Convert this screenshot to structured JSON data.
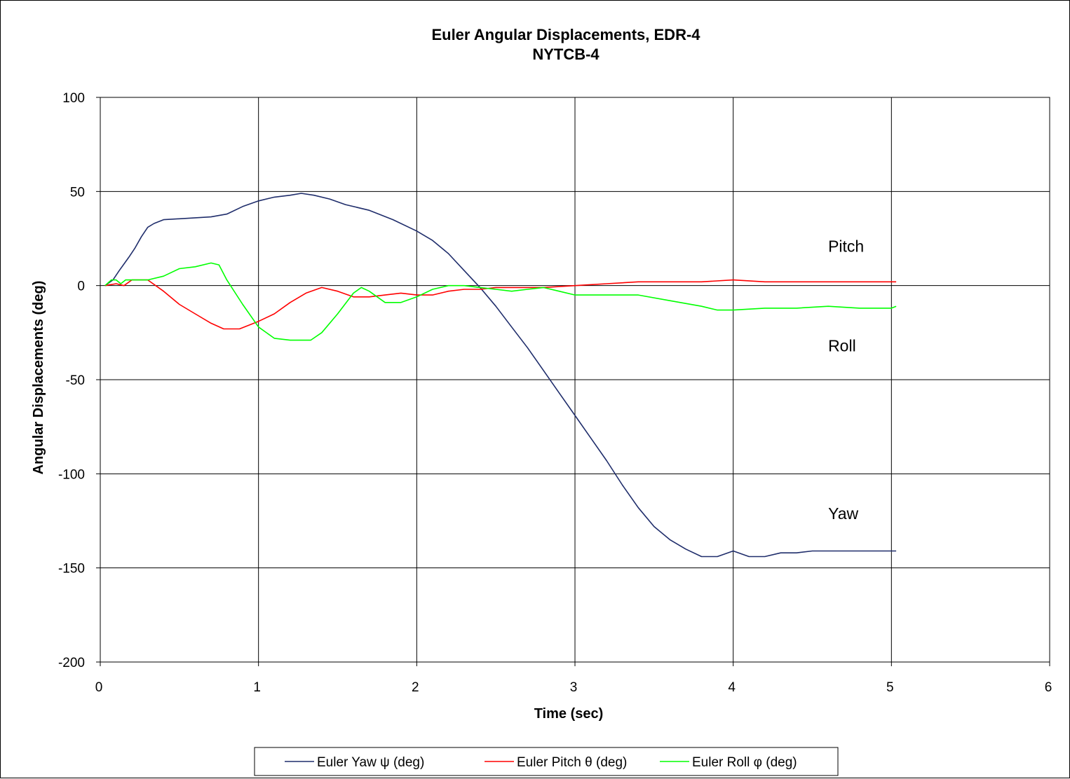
{
  "chart_data": {
    "type": "line",
    "title": "Euler Angular Displacements, EDR-4",
    "subtitle": "NYTCB-4",
    "xlabel": "Time (sec)",
    "ylabel": "Angular Displacements (deg)",
    "xlim": [
      0,
      6
    ],
    "ylim": [
      -200,
      100
    ],
    "xticks": [
      0,
      1,
      2,
      3,
      4,
      5,
      6
    ],
    "yticks": [
      100,
      50,
      0,
      -50,
      -100,
      -150,
      -200
    ],
    "grid": true,
    "legend_position": "bottom",
    "annotations": [
      {
        "text": "Pitch",
        "x": 4.6,
        "y": 18
      },
      {
        "text": "Roll",
        "x": 4.6,
        "y": -35
      },
      {
        "text": "Yaw",
        "x": 4.6,
        "y": -124
      }
    ],
    "series": [
      {
        "name": "Euler Yaw ψ (deg)",
        "color": "#1f2d6b",
        "points": [
          [
            0.03,
            0
          ],
          [
            0.08,
            3
          ],
          [
            0.12,
            8
          ],
          [
            0.18,
            15
          ],
          [
            0.22,
            20
          ],
          [
            0.26,
            26
          ],
          [
            0.3,
            31
          ],
          [
            0.34,
            33
          ],
          [
            0.4,
            35
          ],
          [
            0.5,
            35.5
          ],
          [
            0.6,
            36
          ],
          [
            0.7,
            36.5
          ],
          [
            0.8,
            38
          ],
          [
            0.9,
            42
          ],
          [
            1.0,
            45
          ],
          [
            1.1,
            47
          ],
          [
            1.2,
            48
          ],
          [
            1.27,
            49
          ],
          [
            1.35,
            48
          ],
          [
            1.45,
            46
          ],
          [
            1.55,
            43
          ],
          [
            1.7,
            40
          ],
          [
            1.85,
            35
          ],
          [
            2.0,
            29
          ],
          [
            2.1,
            24
          ],
          [
            2.2,
            17
          ],
          [
            2.3,
            8
          ],
          [
            2.4,
            -1
          ],
          [
            2.5,
            -11
          ],
          [
            2.6,
            -22
          ],
          [
            2.7,
            -33
          ],
          [
            2.8,
            -45
          ],
          [
            2.9,
            -57
          ],
          [
            3.0,
            -69
          ],
          [
            3.1,
            -81
          ],
          [
            3.2,
            -93
          ],
          [
            3.3,
            -106
          ],
          [
            3.4,
            -118
          ],
          [
            3.5,
            -128
          ],
          [
            3.6,
            -135
          ],
          [
            3.7,
            -140
          ],
          [
            3.8,
            -144
          ],
          [
            3.9,
            -144
          ],
          [
            4.0,
            -141
          ],
          [
            4.1,
            -144
          ],
          [
            4.2,
            -144
          ],
          [
            4.3,
            -142
          ],
          [
            4.4,
            -142
          ],
          [
            4.5,
            -141
          ],
          [
            4.7,
            -141
          ],
          [
            5.0,
            -141
          ],
          [
            5.03,
            -141
          ]
        ]
      },
      {
        "name": "Euler Pitch θ (deg)",
        "color": "#ff0000",
        "points": [
          [
            0.03,
            0
          ],
          [
            0.1,
            1
          ],
          [
            0.15,
            0
          ],
          [
            0.2,
            3
          ],
          [
            0.3,
            3
          ],
          [
            0.4,
            -3
          ],
          [
            0.5,
            -10
          ],
          [
            0.6,
            -15
          ],
          [
            0.7,
            -20
          ],
          [
            0.78,
            -23
          ],
          [
            0.88,
            -23
          ],
          [
            1.0,
            -19
          ],
          [
            1.1,
            -15
          ],
          [
            1.2,
            -9
          ],
          [
            1.3,
            -4
          ],
          [
            1.4,
            -1
          ],
          [
            1.5,
            -3
          ],
          [
            1.6,
            -6
          ],
          [
            1.7,
            -6
          ],
          [
            1.8,
            -5
          ],
          [
            1.9,
            -4
          ],
          [
            2.0,
            -5
          ],
          [
            2.1,
            -5
          ],
          [
            2.2,
            -3
          ],
          [
            2.3,
            -2
          ],
          [
            2.4,
            -2
          ],
          [
            2.5,
            -1
          ],
          [
            2.6,
            -1
          ],
          [
            2.8,
            -1
          ],
          [
            3.0,
            0
          ],
          [
            3.2,
            1
          ],
          [
            3.4,
            2
          ],
          [
            3.6,
            2
          ],
          [
            3.8,
            2
          ],
          [
            4.0,
            3
          ],
          [
            4.2,
            2
          ],
          [
            4.4,
            2
          ],
          [
            4.6,
            2
          ],
          [
            4.8,
            2
          ],
          [
            5.0,
            2
          ],
          [
            5.03,
            2
          ]
        ]
      },
      {
        "name": "Euler Roll φ (deg)",
        "color": "#00ff00",
        "points": [
          [
            0.03,
            0
          ],
          [
            0.07,
            3
          ],
          [
            0.1,
            3
          ],
          [
            0.13,
            1
          ],
          [
            0.16,
            3
          ],
          [
            0.2,
            3
          ],
          [
            0.3,
            3
          ],
          [
            0.4,
            5
          ],
          [
            0.5,
            9
          ],
          [
            0.6,
            10
          ],
          [
            0.7,
            12
          ],
          [
            0.75,
            11
          ],
          [
            0.8,
            3
          ],
          [
            0.9,
            -10
          ],
          [
            1.0,
            -22
          ],
          [
            1.1,
            -28
          ],
          [
            1.2,
            -29
          ],
          [
            1.33,
            -29
          ],
          [
            1.4,
            -25
          ],
          [
            1.5,
            -15
          ],
          [
            1.6,
            -4
          ],
          [
            1.65,
            -1
          ],
          [
            1.7,
            -3
          ],
          [
            1.8,
            -9
          ],
          [
            1.9,
            -9
          ],
          [
            2.0,
            -6
          ],
          [
            2.1,
            -2
          ],
          [
            2.2,
            0
          ],
          [
            2.3,
            0
          ],
          [
            2.4,
            -1
          ],
          [
            2.5,
            -2
          ],
          [
            2.6,
            -3
          ],
          [
            2.7,
            -2
          ],
          [
            2.8,
            -1
          ],
          [
            2.9,
            -3
          ],
          [
            3.0,
            -5
          ],
          [
            3.2,
            -5
          ],
          [
            3.4,
            -5
          ],
          [
            3.6,
            -8
          ],
          [
            3.8,
            -11
          ],
          [
            3.9,
            -13
          ],
          [
            4.0,
            -13
          ],
          [
            4.2,
            -12
          ],
          [
            4.4,
            -12
          ],
          [
            4.6,
            -11
          ],
          [
            4.8,
            -12
          ],
          [
            5.0,
            -12
          ],
          [
            5.03,
            -11
          ]
        ]
      }
    ]
  }
}
